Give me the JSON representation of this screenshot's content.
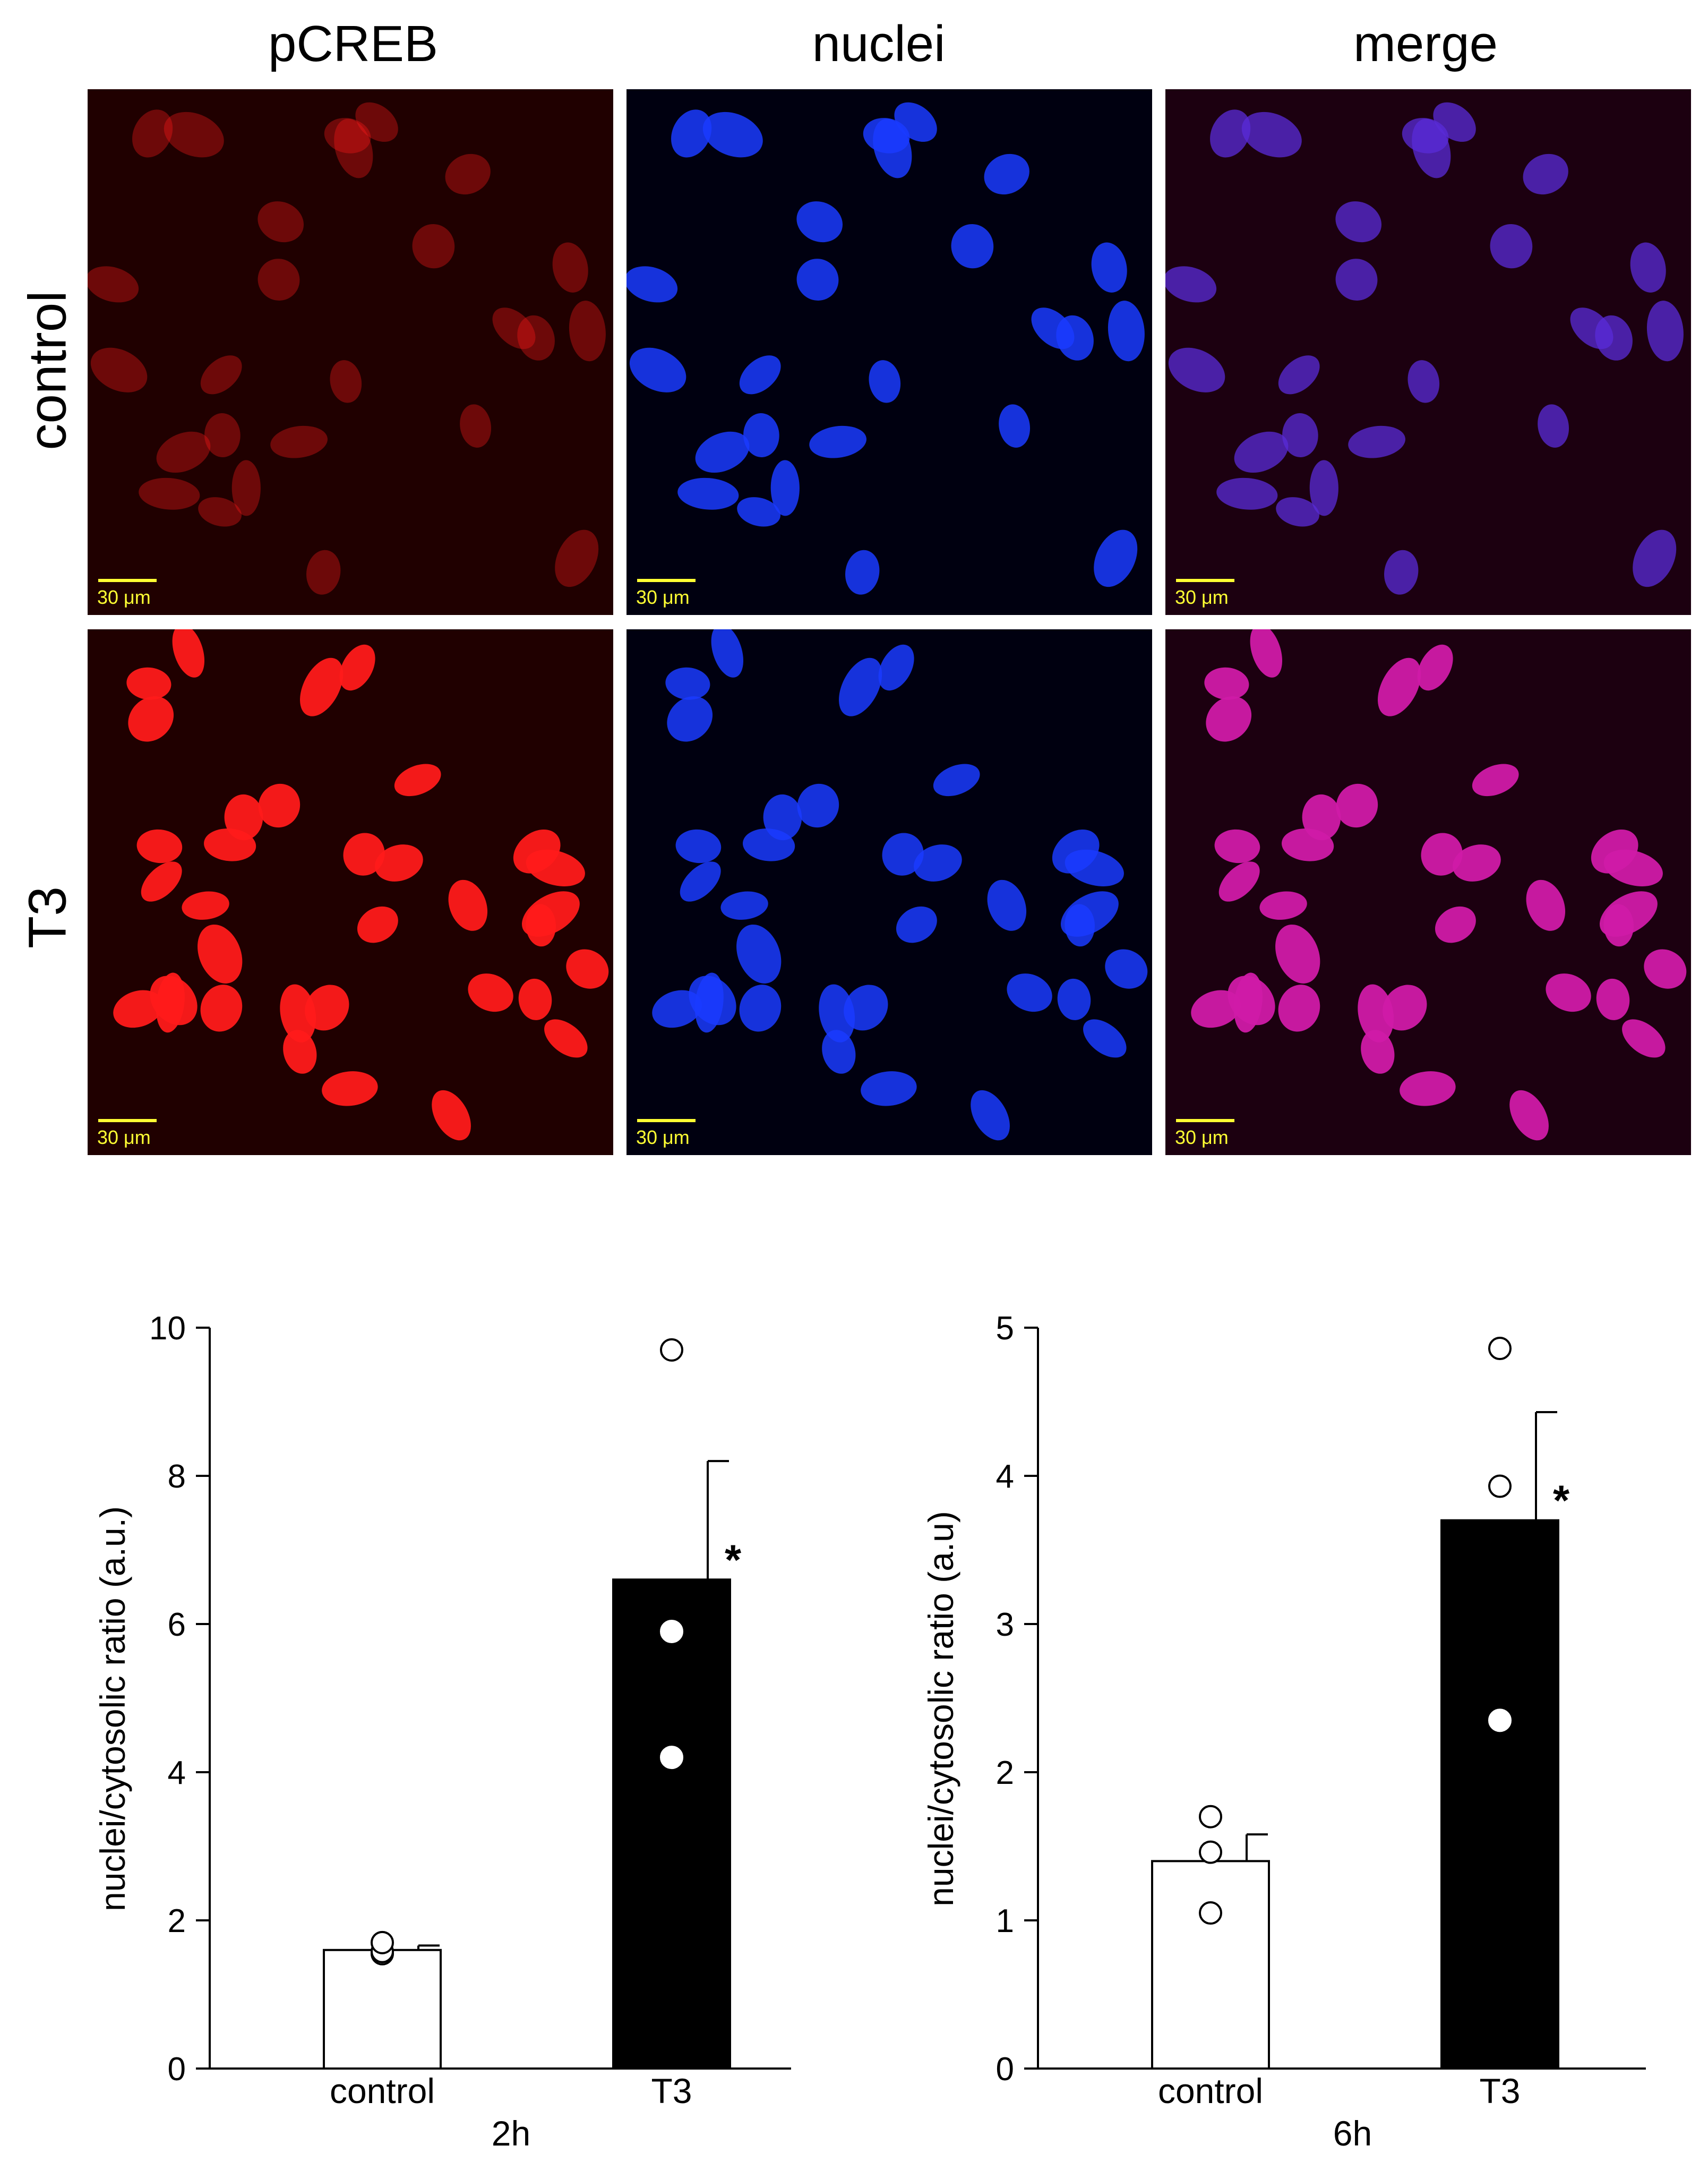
{
  "figure": {
    "columns": [
      "pCREB",
      "nuclei",
      "merge"
    ],
    "rows": [
      "control",
      "T3"
    ],
    "scale_bar_label": "30 μm",
    "channel_colors": {
      "pCREB": "#ff1a1a",
      "nuclei": "#1a3bff",
      "merge": "#d01aa8"
    }
  },
  "chart_data": [
    {
      "type": "bar",
      "categories": [
        "control",
        "T3"
      ],
      "values": [
        1.6,
        6.6
      ],
      "error": [
        0.06,
        1.6
      ],
      "points": [
        [
          1.55,
          1.58,
          1.7
        ],
        [
          9.7,
          5.9,
          4.2
        ]
      ],
      "bar_colors": [
        "#ffffff",
        "#000000"
      ],
      "xlabel": "2h",
      "ylabel": "nuclei/cytosolic ratio (a.u.)",
      "ylim": [
        0,
        10
      ],
      "yticks": [
        0,
        2,
        4,
        6,
        8,
        10
      ],
      "ytick_labels": [
        "0",
        "2",
        "4",
        "6",
        "8",
        "10"
      ],
      "annotation": "*"
    },
    {
      "type": "bar",
      "categories": [
        "control",
        "T3"
      ],
      "values": [
        1.4,
        3.7
      ],
      "error": [
        0.18,
        0.73
      ],
      "points": [
        [
          1.05,
          1.46,
          1.7
        ],
        [
          4.86,
          3.93,
          2.35
        ]
      ],
      "bar_colors": [
        "#ffffff",
        "#000000"
      ],
      "xlabel": "6h",
      "ylabel": "nuclei/cytosolic ratio (a.u)",
      "ylim": [
        0,
        5
      ],
      "yticks": [
        0,
        1,
        2,
        3,
        4,
        5
      ],
      "ytick_labels": [
        "0",
        "1",
        "2",
        "3",
        "4",
        "5"
      ],
      "annotation": "*"
    }
  ]
}
